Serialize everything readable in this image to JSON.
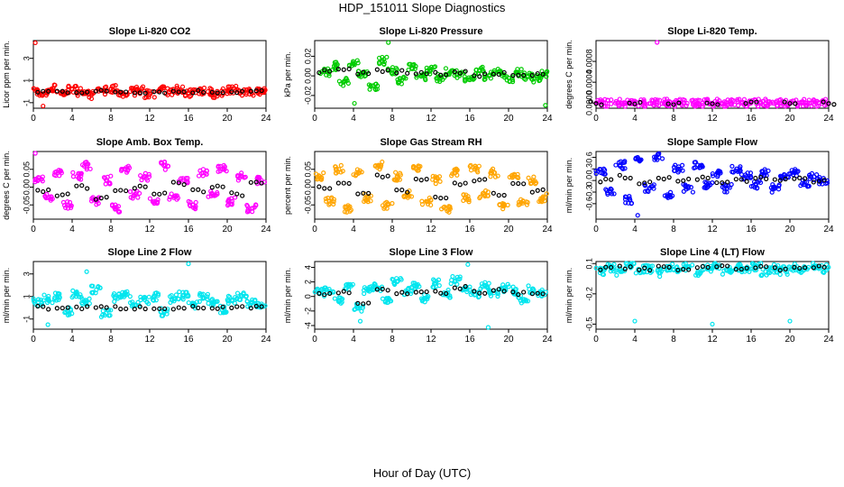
{
  "figure": {
    "title": "HDP_151011  Slope Diagnostics",
    "xlabel": "Hour of Day (UTC)"
  },
  "chart_data": [
    {
      "type": "scatter",
      "title": "Slope Li-820 CO2",
      "ylabel": "Licor ppm per min.",
      "color": "#ff0000",
      "xlim": [
        0,
        24
      ],
      "xticks": [
        0,
        4,
        8,
        12,
        16,
        20,
        24
      ],
      "ylim": [
        -1.5,
        4.6
      ],
      "yticks": [
        -1,
        1,
        3
      ],
      "series": [
        {
          "name": "samples",
          "x": [
            0.2,
            1,
            2,
            3,
            4,
            5,
            6,
            7,
            8,
            9,
            10,
            11,
            12,
            13,
            14,
            15,
            16,
            17,
            18,
            19,
            20,
            21,
            22,
            23,
            23.8
          ],
          "y": [
            0.1,
            -0.2,
            0.3,
            -0.1,
            0.2,
            0.0,
            -0.3,
            0.1,
            0.2,
            -0.1,
            0.0,
            0.1,
            -0.2,
            0.1,
            0.0,
            0.2,
            -0.1,
            0.1,
            0.0,
            -0.2,
            0.1,
            0.2,
            -0.1,
            0.0,
            0.1
          ]
        },
        {
          "name": "outliers",
          "x": [
            0.2,
            1.0
          ],
          "y": [
            4.4,
            -1.3
          ]
        },
        {
          "name": "hourly mean",
          "x": [
            1,
            3,
            5,
            7,
            9,
            11,
            13,
            15,
            17,
            19,
            21,
            23
          ],
          "y": [
            0,
            0,
            0,
            0,
            0,
            0,
            0,
            0,
            0,
            0,
            0,
            0
          ]
        }
      ]
    },
    {
      "type": "scatter",
      "title": "Slope Li-820 Pressure",
      "ylabel": "kPa per min.",
      "color": "#00cc00",
      "xlim": [
        0,
        24
      ],
      "xticks": [
        0,
        4,
        8,
        12,
        16,
        20,
        24
      ],
      "ylim": [
        -0.033,
        0.036
      ],
      "yticks": [
        -0.02,
        0.0,
        0.02
      ],
      "series": [
        {
          "name": "samples",
          "x": [
            1,
            2,
            3,
            4,
            5,
            6,
            7,
            8,
            9,
            10,
            11,
            12,
            13,
            14,
            15,
            16,
            17,
            18,
            19,
            20,
            21,
            22,
            23,
            23.8
          ],
          "y": [
            0.004,
            0.01,
            -0.006,
            0.012,
            0.002,
            -0.01,
            0.015,
            0.006,
            -0.004,
            0.008,
            0.0,
            0.006,
            -0.002,
            0.004,
            0.002,
            -0.004,
            0.006,
            0.0,
            0.004,
            -0.002,
            0.003,
            0.0,
            -0.003,
            0.002
          ]
        },
        {
          "name": "outliers",
          "x": [
            4.1,
            7.6,
            23.8
          ],
          "y": [
            -0.028,
            0.034,
            -0.03
          ]
        },
        {
          "name": "hourly mean",
          "x": [
            1,
            3,
            5,
            7,
            9,
            11,
            13,
            15,
            17,
            19,
            21,
            23
          ],
          "y": [
            0.005,
            0.008,
            0.002,
            0.006,
            0.004,
            0.003,
            0.002,
            0.003,
            0.001,
            0.002,
            0.0,
            0.001
          ]
        }
      ]
    },
    {
      "type": "scatter",
      "title": "Slope Li-820 Temp.",
      "ylabel": "degrees C per min.",
      "color": "#ff00ff",
      "xlim": [
        0,
        24
      ],
      "xticks": [
        0,
        4,
        8,
        12,
        16,
        20,
        24
      ],
      "ylim": [
        -0.0001,
        0.0012
      ],
      "yticks": [
        0.0,
        0.0004,
        0.0008
      ],
      "series": [
        {
          "name": "samples",
          "x": [
            0,
            1,
            2,
            3,
            4,
            5,
            6,
            7,
            8,
            9,
            10,
            11,
            12,
            13,
            14,
            15,
            16,
            17,
            18,
            19,
            20,
            21,
            22,
            23,
            24
          ],
          "y": [
            0,
            0,
            0,
            0,
            0,
            0,
            0,
            0,
            0,
            0,
            0,
            0,
            0,
            0,
            0,
            0,
            0,
            0,
            0,
            0,
            0,
            0,
            0,
            0,
            0
          ]
        },
        {
          "name": "outliers",
          "x": [
            6.3
          ],
          "y": [
            0.00118
          ]
        },
        {
          "name": "hourly mean",
          "x": [
            0,
            4,
            8,
            12,
            16,
            20,
            24
          ],
          "y": [
            0,
            0,
            0,
            0,
            0,
            0,
            0
          ]
        }
      ]
    },
    {
      "type": "scatter",
      "title": "Slope Amb. Box Temp.",
      "ylabel": "degrees C per min.",
      "color": "#ff00ff",
      "xlim": [
        0,
        24
      ],
      "xticks": [
        0,
        4,
        8,
        12,
        16,
        20,
        24
      ],
      "ylim": [
        -0.09,
        0.1
      ],
      "yticks": [
        -0.05,
        0.0,
        0.05
      ],
      "series": [
        {
          "name": "samples",
          "x": [
            0.5,
            1.5,
            2.5,
            3.5,
            4.5,
            5.5,
            6.5,
            7.5,
            8.5,
            9.5,
            10.5,
            11.5,
            12.5,
            13.5,
            14.5,
            15.5,
            16.5,
            17.5,
            18.5,
            19.5,
            20.5,
            21.5,
            22.5,
            23.5
          ],
          "y": [
            0.02,
            -0.03,
            0.04,
            -0.05,
            0.03,
            0.06,
            -0.04,
            0.02,
            -0.06,
            0.05,
            -0.02,
            0.03,
            -0.04,
            0.06,
            -0.03,
            0.02,
            -0.05,
            0.04,
            -0.02,
            0.05,
            -0.04,
            0.03,
            -0.06,
            0.02
          ]
        },
        {
          "name": "outliers",
          "x": [
            0.2
          ],
          "y": [
            0.095
          ]
        },
        {
          "name": "hourly mean",
          "x": [
            1,
            3,
            5,
            7,
            9,
            11,
            13,
            15,
            17,
            19,
            21,
            23
          ],
          "y": [
            -0.01,
            -0.02,
            0.0,
            -0.03,
            -0.01,
            0.0,
            -0.02,
            0.01,
            -0.01,
            0.0,
            -0.02,
            0.01
          ]
        }
      ]
    },
    {
      "type": "scatter",
      "title": "Slope Gas Stream RH",
      "ylabel": "percent per min.",
      "color": "#ffa500",
      "xlim": [
        0,
        24
      ],
      "xticks": [
        0,
        4,
        8,
        12,
        16,
        20,
        24
      ],
      "ylim": [
        -0.09,
        0.1
      ],
      "yticks": [
        -0.05,
        0.0,
        0.05
      ],
      "series": [
        {
          "name": "samples",
          "x": [
            0.5,
            1.5,
            2.5,
            3.5,
            4.5,
            5.5,
            6.5,
            7.5,
            8.5,
            9.5,
            10.5,
            11.5,
            12.5,
            13.5,
            14.5,
            15.5,
            16.5,
            17.5,
            18.5,
            19.5,
            20.5,
            21.5,
            22.5,
            23.5
          ],
          "y": [
            0.03,
            -0.04,
            0.05,
            -0.06,
            0.04,
            -0.03,
            0.06,
            -0.05,
            0.03,
            -0.02,
            0.05,
            -0.04,
            0.02,
            -0.06,
            0.04,
            -0.03,
            0.05,
            -0.02,
            0.04,
            -0.05,
            0.03,
            -0.04,
            0.02,
            -0.03
          ]
        },
        {
          "name": "hourly mean",
          "x": [
            1,
            3,
            5,
            7,
            9,
            11,
            13,
            15,
            17,
            19,
            21,
            23
          ],
          "y": [
            0.0,
            0.01,
            -0.02,
            0.03,
            -0.01,
            0.02,
            -0.03,
            0.01,
            0.02,
            -0.02,
            0.01,
            -0.01
          ]
        }
      ]
    },
    {
      "type": "scatter",
      "title": "Slope Sample Flow",
      "ylabel": "ml/min per min.",
      "color": "#0000ff",
      "xlim": [
        0,
        24
      ],
      "xticks": [
        0,
        4,
        8,
        12,
        16,
        20,
        24
      ],
      "ylim": [
        -1.0,
        0.75
      ],
      "yticks": [
        -0.6,
        -0.3,
        0.0,
        0.3,
        0.6
      ],
      "series": [
        {
          "name": "samples",
          "x": [
            0.5,
            1.5,
            2.5,
            3.5,
            4.5,
            5.5,
            6.5,
            7.5,
            8.5,
            9.5,
            10.5,
            11.5,
            12.5,
            13.5,
            14.5,
            15.5,
            16.5,
            17.5,
            18.5,
            19.5,
            20.5,
            21.5,
            22.5,
            23.5
          ],
          "y": [
            0.2,
            -0.3,
            0.4,
            -0.5,
            0.5,
            -0.2,
            0.6,
            -0.4,
            0.3,
            -0.2,
            0.4,
            -0.1,
            0.2,
            -0.2,
            0.3,
            0.1,
            -0.1,
            0.2,
            -0.2,
            0.1,
            0.2,
            -0.1,
            0.1,
            0.0
          ]
        },
        {
          "name": "outliers",
          "x": [
            4.3
          ],
          "y": [
            -0.9
          ]
        },
        {
          "name": "hourly mean",
          "x": [
            1,
            3,
            5,
            7,
            9,
            11,
            13,
            15,
            17,
            19,
            21,
            23
          ],
          "y": [
            0.0,
            0.1,
            -0.05,
            0.05,
            0.0,
            0.05,
            -0.05,
            0.0,
            0.05,
            0.0,
            0.05,
            0.0
          ]
        }
      ]
    },
    {
      "type": "scatter",
      "title": "Slope Line 2 Flow",
      "ylabel": "ml/min per min.",
      "color": "#00e5ee",
      "xlim": [
        0,
        24
      ],
      "xticks": [
        0,
        4,
        8,
        12,
        16,
        20,
        24
      ],
      "ylim": [
        -1.9,
        4.1
      ],
      "yticks": [
        -1,
        1,
        3
      ],
      "series": [
        {
          "name": "samples",
          "x": [
            0.5,
            1.5,
            2.5,
            3.5,
            4.5,
            5.5,
            6.5,
            7.5,
            8.5,
            9.5,
            10.5,
            11.5,
            12.5,
            13.5,
            14.5,
            15.5,
            16.5,
            17.5,
            18.5,
            19.5,
            20.5,
            21.5,
            22.5,
            23.5
          ],
          "y": [
            0.5,
            0.8,
            1.0,
            -0.3,
            1.2,
            0.6,
            1.6,
            -0.5,
            0.9,
            1.3,
            0.2,
            0.7,
            1.0,
            -0.4,
            0.8,
            1.1,
            0.3,
            0.9,
            0.5,
            -0.2,
            0.7,
            1.0,
            0.4,
            0.2
          ]
        },
        {
          "name": "outliers",
          "x": [
            5.5,
            16.0,
            1.5
          ],
          "y": [
            3.2,
            3.9,
            -1.5
          ]
        },
        {
          "name": "hourly mean",
          "x": [
            1,
            3,
            5,
            7,
            9,
            11,
            13,
            15,
            17,
            19,
            21,
            23
          ],
          "y": [
            0,
            0,
            0,
            0,
            0,
            0,
            0,
            0,
            0,
            0,
            0,
            0
          ]
        }
      ]
    },
    {
      "type": "scatter",
      "title": "Slope Line 3 Flow",
      "ylabel": "ml/min per min.",
      "color": "#00e5ee",
      "xlim": [
        0,
        24
      ],
      "xticks": [
        0,
        4,
        8,
        12,
        16,
        20,
        24
      ],
      "ylim": [
        -4.5,
        4.8
      ],
      "yticks": [
        -4,
        -2,
        0,
        2,
        4
      ],
      "series": [
        {
          "name": "samples",
          "x": [
            0.5,
            1.5,
            2.5,
            3.5,
            4.5,
            5.5,
            6.5,
            7.5,
            8.5,
            9.5,
            10.5,
            11.5,
            12.5,
            13.5,
            14.5,
            15.5,
            16.5,
            17.5,
            18.5,
            19.5,
            20.5,
            21.5,
            22.5,
            23.5
          ],
          "y": [
            0.5,
            1.0,
            -0.5,
            1.5,
            -1.5,
            0.8,
            1.2,
            -0.3,
            2.0,
            0.6,
            1.4,
            -0.2,
            1.8,
            0.4,
            2.2,
            1.0,
            0.2,
            1.6,
            0.5,
            1.2,
            0.8,
            -0.4,
            1.0,
            0.6
          ]
        },
        {
          "name": "outliers",
          "x": [
            4.7,
            15.8,
            17.9
          ],
          "y": [
            -3.4,
            4.4,
            -4.3
          ]
        },
        {
          "name": "hourly mean",
          "x": [
            1,
            3,
            5,
            7,
            9,
            11,
            13,
            15,
            17,
            19,
            21,
            23
          ],
          "y": [
            0.2,
            0.6,
            -1.0,
            0.8,
            0.4,
            0.8,
            0.6,
            1.2,
            0.6,
            0.8,
            0.4,
            0.5
          ]
        }
      ]
    },
    {
      "type": "scatter",
      "title": "Slope Line 4 (LT) Flow",
      "ylabel": "ml/min per min.",
      "color": "#00e5ee",
      "xlim": [
        0,
        24
      ],
      "xticks": [
        0,
        4,
        8,
        12,
        16,
        20,
        24
      ],
      "ylim": [
        -0.55,
        0.12
      ],
      "yticks": [
        -0.5,
        -0.2,
        0.1
      ],
      "series": [
        {
          "name": "samples",
          "x": [
            0.5,
            1.5,
            2.5,
            3.5,
            4.5,
            5.5,
            6.5,
            7.5,
            8.5,
            9.5,
            10.5,
            11.5,
            12.5,
            13.5,
            14.5,
            15.5,
            16.5,
            17.5,
            18.5,
            19.5,
            20.5,
            21.5,
            22.5,
            23.5
          ],
          "y": [
            0.03,
            0.06,
            0.02,
            0.08,
            0.04,
            0.05,
            0.01,
            0.07,
            0.03,
            0.06,
            0.02,
            0.05,
            0.08,
            0.03,
            0.06,
            0.04,
            0.07,
            0.02,
            0.05,
            0.03,
            0.06,
            0.04,
            0.08,
            0.05
          ]
        },
        {
          "name": "outliers",
          "x": [
            4.0,
            12.0,
            20.0
          ],
          "y": [
            -0.47,
            -0.5,
            -0.47
          ]
        },
        {
          "name": "hourly mean",
          "x": [
            1,
            3,
            5,
            7,
            9,
            11,
            13,
            15,
            17,
            19,
            21,
            23
          ],
          "y": [
            0.05,
            0.06,
            0.05,
            0.06,
            0.05,
            0.06,
            0.07,
            0.06,
            0.06,
            0.05,
            0.07,
            0.06
          ]
        }
      ]
    }
  ]
}
